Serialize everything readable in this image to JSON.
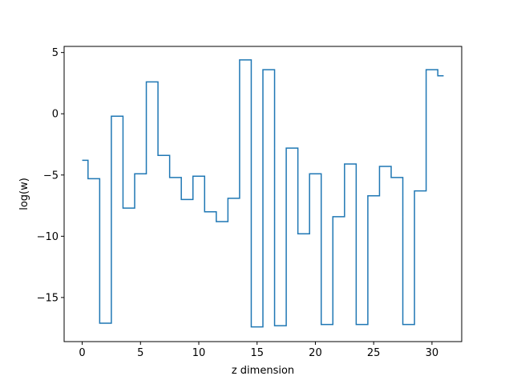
{
  "chart_data": {
    "type": "line",
    "step": "mid",
    "title": "",
    "xlabel": "z dimension",
    "ylabel": "log(w)",
    "xlim": [
      -1.55,
      32.55
    ],
    "ylim": [
      -18.6,
      5.5
    ],
    "xticks": [
      0,
      5,
      10,
      15,
      20,
      25,
      30
    ],
    "yticks": [
      5,
      0,
      -5,
      -10,
      -15
    ],
    "ytick_labels": [
      "5",
      "0",
      "−5",
      "−10",
      "−15"
    ],
    "grid": false,
    "color": "#1f77b4",
    "series": [
      {
        "x": [
          0,
          1,
          2,
          3,
          4,
          5,
          6,
          7,
          8,
          9,
          10,
          11,
          12,
          13,
          14,
          15,
          16,
          17,
          18,
          19,
          20,
          21,
          22,
          23,
          24,
          25,
          26,
          27,
          28,
          29,
          30,
          31
        ],
        "y": [
          -3.8,
          -5.3,
          -17.1,
          -0.2,
          -7.7,
          -4.9,
          2.6,
          -3.4,
          -5.2,
          -7.0,
          -5.1,
          -8.0,
          -8.8,
          -6.9,
          4.4,
          -17.4,
          3.6,
          -17.3,
          -2.8,
          -9.8,
          -4.9,
          -17.2,
          -8.4,
          -4.1,
          -17.2,
          -6.7,
          -4.3,
          -5.2,
          -17.2,
          -6.3,
          3.6,
          3.1
        ]
      }
    ]
  }
}
